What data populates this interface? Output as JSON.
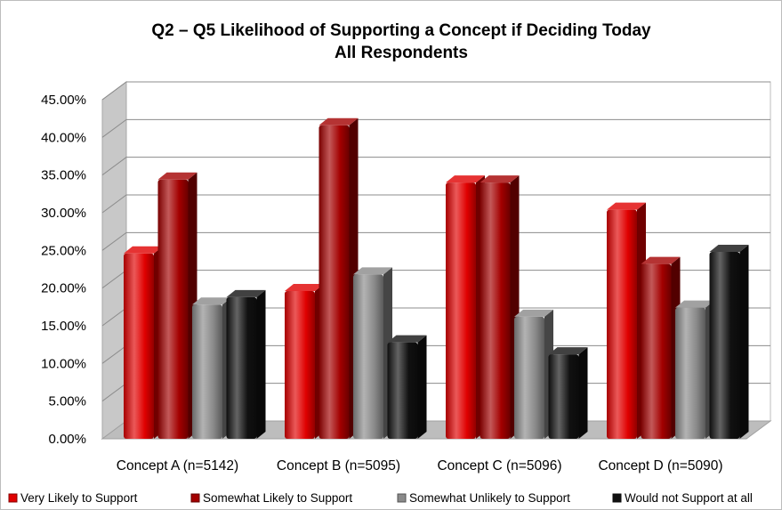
{
  "chart_data": {
    "type": "bar",
    "title": "Q2 – Q5 Likelihood of Supporting a Concept if Deciding Today",
    "subtitle": "All Respondents",
    "categories": [
      "Concept A (n=5142)",
      "Concept B (n=5095)",
      "Concept C (n=5096)",
      "Concept D (n=5090)"
    ],
    "series": [
      {
        "name": "Very Likely to Support",
        "color": "#e00000",
        "values": [
          24.6,
          19.6,
          34.0,
          30.4
        ]
      },
      {
        "name": "Somewhat Likely to Support",
        "color": "#a30000",
        "values": [
          34.4,
          41.6,
          34.0,
          23.2
        ]
      },
      {
        "name": "Somewhat Unlikely to Support",
        "color": "#8a8a8a",
        "values": [
          17.8,
          21.8,
          16.2,
          17.4
        ]
      },
      {
        "name": "Would not Support at all",
        "color": "#111111",
        "values": [
          18.8,
          12.8,
          11.2,
          24.8
        ]
      }
    ],
    "yticks": [
      "0.00%",
      "5.00%",
      "10.00%",
      "15.00%",
      "20.00%",
      "25.00%",
      "30.00%",
      "35.00%",
      "40.00%",
      "45.00%"
    ],
    "ylim": [
      0,
      45
    ],
    "xlabel": "",
    "ylabel": "",
    "grid": true,
    "legend_position": "bottom",
    "style": "3d-cylinder-bars"
  }
}
